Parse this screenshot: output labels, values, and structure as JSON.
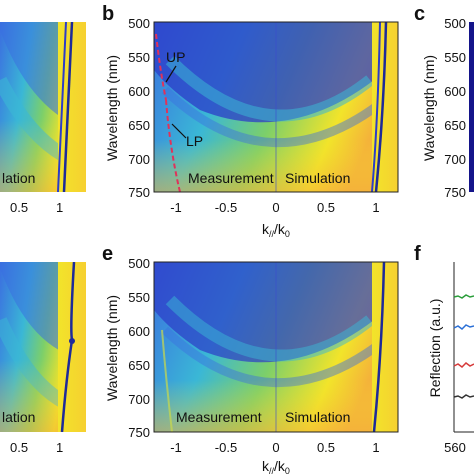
{
  "panels": {
    "b": "b",
    "c": "c",
    "e": "e",
    "f": "f"
  },
  "axes": {
    "wavelength_label": "Wavelength (nm)",
    "x_label_k": "k",
    "x_label_sub_par": "//",
    "x_label_slash": "/k",
    "x_label_sub_0": "0",
    "reflection_label": "Reflection (a.u.)",
    "y_ticks": [
      "500",
      "550",
      "600",
      "650",
      "700",
      "750"
    ],
    "x_ticks_b": [
      "-1",
      "-0.5",
      "0",
      "0.5",
      "1"
    ],
    "x_ticks_left": [
      "0.5",
      "1"
    ],
    "f_x_tick": "560"
  },
  "annotations": {
    "measurement": "Measurement",
    "simulation": "Simulation",
    "simulation_cut": "lation",
    "up": "UP",
    "lp": "LP"
  },
  "colors": {
    "deep_blue": "#2c3cc8",
    "mid_blue": "#3b6fe0",
    "cyan": "#3ab7d6",
    "green": "#7ccf6a",
    "yellow": "#f2e42a",
    "orange": "#f4b23a",
    "red_dashed": "#e0325a",
    "colorbar": "#14148a",
    "f_lines": [
      "#2a9d3a",
      "#2a6fd6",
      "#d63a3a",
      "#333333"
    ]
  }
}
